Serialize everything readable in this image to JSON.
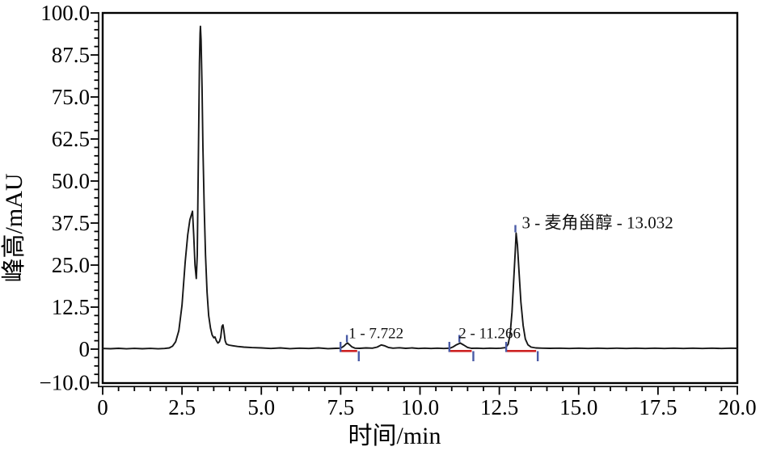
{
  "page": {
    "background": "#ffffff"
  },
  "chart_data": {
    "type": "line",
    "title": "",
    "xlabel": "时间/min",
    "ylabel": "峰高/mAU",
    "xlim": [
      0,
      20
    ],
    "ylim": [
      -10,
      100
    ],
    "grid": false,
    "x_major_ticks": [
      0,
      2.5,
      5,
      7.5,
      10,
      12.5,
      15,
      17.5,
      20
    ],
    "x_tick_labels": [
      "0",
      "2.5",
      "5.0",
      "7.5",
      "10.0",
      "12.5",
      "15.0",
      "17.5",
      "20.0"
    ],
    "x_minor_step": 0.5,
    "y_major_ticks": [
      100,
      87.5,
      75,
      62.5,
      50,
      37.5,
      25,
      12.5,
      0,
      -10
    ],
    "y_tick_labels": [
      "100.0",
      "87.5",
      "75.0",
      "62.5",
      "50.0",
      "37.5",
      "25.0",
      "12.5",
      "0",
      "−10.0"
    ],
    "y_minor_step": 2.5,
    "colors": {
      "signal": "#161616",
      "integration_baseline": "#cd2323",
      "peak_marker": "#4a5ba6",
      "axis": "#000000"
    },
    "peaks": [
      {
        "number": 1,
        "compound": "",
        "retention_time_min": 7.722,
        "label": "1 - 7.722",
        "height_mAU": 1.8,
        "integration_start_min": 7.47,
        "integration_end_min": 8.02
      },
      {
        "number": 2,
        "compound": "",
        "retention_time_min": 11.266,
        "label": "2 - 11.266",
        "height_mAU": 1.8,
        "integration_start_min": 10.9,
        "integration_end_min": 11.63
      },
      {
        "number": 3,
        "compound": "麦角甾醇",
        "retention_time_min": 13.032,
        "label": "3 - 麦角甾醇 - 13.032",
        "height_mAU": 34.5,
        "integration_start_min": 12.69,
        "integration_end_min": 13.66
      }
    ],
    "series": [
      {
        "name": "chromatogram-signal",
        "points": [
          [
            0,
            0.2
          ],
          [
            0.25,
            0.12
          ],
          [
            0.5,
            0.25
          ],
          [
            0.75,
            0.1
          ],
          [
            1.0,
            0.22
          ],
          [
            1.25,
            0.12
          ],
          [
            1.5,
            0.22
          ],
          [
            1.75,
            0.1
          ],
          [
            1.95,
            0.2
          ],
          [
            2.1,
            0.35
          ],
          [
            2.2,
            0.9
          ],
          [
            2.3,
            2.2
          ],
          [
            2.4,
            5.5
          ],
          [
            2.5,
            13
          ],
          [
            2.6,
            26
          ],
          [
            2.68,
            34
          ],
          [
            2.75,
            38.5
          ],
          [
            2.83,
            41
          ],
          [
            2.87,
            34
          ],
          [
            2.91,
            25
          ],
          [
            2.95,
            21
          ],
          [
            2.98,
            28
          ],
          [
            3.0,
            45
          ],
          [
            3.03,
            68
          ],
          [
            3.05,
            85
          ],
          [
            3.07,
            94
          ],
          [
            3.08,
            96
          ],
          [
            3.1,
            92
          ],
          [
            3.13,
            78
          ],
          [
            3.16,
            60
          ],
          [
            3.2,
            42
          ],
          [
            3.24,
            28
          ],
          [
            3.29,
            17
          ],
          [
            3.34,
            10
          ],
          [
            3.4,
            6.2
          ],
          [
            3.45,
            4.2
          ],
          [
            3.5,
            3.4
          ],
          [
            3.54,
            3.6
          ],
          [
            3.58,
            2.6
          ],
          [
            3.63,
            1.8
          ],
          [
            3.68,
            2.2
          ],
          [
            3.72,
            3.5
          ],
          [
            3.76,
            6.8
          ],
          [
            3.79,
            7.2
          ],
          [
            3.82,
            5.5
          ],
          [
            3.86,
            2.5
          ],
          [
            3.9,
            1.5
          ],
          [
            3.98,
            1.2
          ],
          [
            4.1,
            1.0
          ],
          [
            4.25,
            0.8
          ],
          [
            4.45,
            0.6
          ],
          [
            4.7,
            0.45
          ],
          [
            5.0,
            0.35
          ],
          [
            5.3,
            0.2
          ],
          [
            5.6,
            0.35
          ],
          [
            5.9,
            0.15
          ],
          [
            6.2,
            0.3
          ],
          [
            6.5,
            0.2
          ],
          [
            6.8,
            0.35
          ],
          [
            7.1,
            0.15
          ],
          [
            7.35,
            0.25
          ],
          [
            7.5,
            0.3
          ],
          [
            7.6,
            0.9
          ],
          [
            7.68,
            1.6
          ],
          [
            7.72,
            1.8
          ],
          [
            7.78,
            1.3
          ],
          [
            7.85,
            0.7
          ],
          [
            7.95,
            0.3
          ],
          [
            8.1,
            0.25
          ],
          [
            8.3,
            0.35
          ],
          [
            8.5,
            0.3
          ],
          [
            8.65,
            0.6
          ],
          [
            8.78,
            1.25
          ],
          [
            8.88,
            1.0
          ],
          [
            9.0,
            0.5
          ],
          [
            9.15,
            0.3
          ],
          [
            9.35,
            0.4
          ],
          [
            9.55,
            0.25
          ],
          [
            9.75,
            0.35
          ],
          [
            9.95,
            0.2
          ],
          [
            10.15,
            0.3
          ],
          [
            10.35,
            0.2
          ],
          [
            10.55,
            0.3
          ],
          [
            10.75,
            0.2
          ],
          [
            10.95,
            0.3
          ],
          [
            11.05,
            0.7
          ],
          [
            11.15,
            1.3
          ],
          [
            11.27,
            1.8
          ],
          [
            11.38,
            1.2
          ],
          [
            11.5,
            0.5
          ],
          [
            11.62,
            0.25
          ],
          [
            11.8,
            0.3
          ],
          [
            12.0,
            0.2
          ],
          [
            12.2,
            0.3
          ],
          [
            12.4,
            0.22
          ],
          [
            12.55,
            0.3
          ],
          [
            12.7,
            0.45
          ],
          [
            12.78,
            1.5
          ],
          [
            12.84,
            4.5
          ],
          [
            12.9,
            11
          ],
          [
            12.95,
            20
          ],
          [
            13.0,
            29
          ],
          [
            13.03,
            34.5
          ],
          [
            13.07,
            31
          ],
          [
            13.12,
            23
          ],
          [
            13.18,
            14
          ],
          [
            13.25,
            7
          ],
          [
            13.32,
            3
          ],
          [
            13.4,
            1.3
          ],
          [
            13.5,
            0.6
          ],
          [
            13.65,
            0.35
          ],
          [
            13.85,
            0.3
          ],
          [
            14.1,
            0.25
          ],
          [
            14.4,
            0.3
          ],
          [
            14.7,
            0.2
          ],
          [
            15.0,
            0.3
          ],
          [
            15.3,
            0.2
          ],
          [
            15.6,
            0.3
          ],
          [
            15.9,
            0.2
          ],
          [
            16.2,
            0.3
          ],
          [
            16.5,
            0.2
          ],
          [
            16.8,
            0.3
          ],
          [
            17.1,
            0.2
          ],
          [
            17.4,
            0.3
          ],
          [
            17.7,
            0.2
          ],
          [
            18.0,
            0.3
          ],
          [
            18.3,
            0.2
          ],
          [
            18.6,
            0.3
          ],
          [
            18.9,
            0.2
          ],
          [
            19.2,
            0.3
          ],
          [
            19.5,
            0.2
          ],
          [
            19.8,
            0.28
          ],
          [
            20.0,
            0.25
          ]
        ]
      }
    ]
  }
}
